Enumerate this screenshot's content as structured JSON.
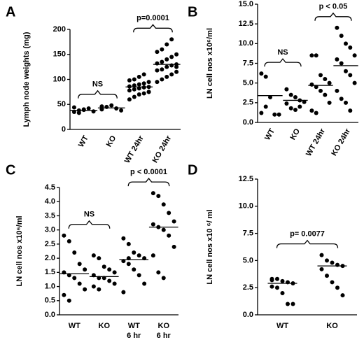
{
  "chart_data": [
    {
      "type": "strip",
      "panel": "A",
      "ylabel": "Lymph node weights (mg)",
      "categories": [
        [
          "WT"
        ],
        [
          "KO"
        ],
        [
          "WT 24hr"
        ],
        [
          "KO 24hr"
        ]
      ],
      "points": [
        [
          35,
          38,
          40,
          42,
          36,
          44,
          33,
          39
        ],
        [
          40,
          45,
          48,
          42,
          38,
          46
        ],
        [
          60,
          65,
          70,
          72,
          75,
          78,
          80,
          82,
          84,
          85,
          86,
          88,
          90,
          92,
          95,
          98,
          100,
          105,
          110,
          75
        ],
        [
          95,
          100,
          105,
          110,
          115,
          118,
          120,
          125,
          128,
          130,
          132,
          135,
          140,
          145,
          150,
          155,
          160,
          170,
          180,
          125
        ]
      ],
      "means": [
        38,
        43,
        85,
        130
      ],
      "annotations": [
        "NS",
        "p=0.0001"
      ],
      "ylim": [
        0,
        200
      ],
      "yticks": [
        0,
        50,
        100,
        150,
        200
      ]
    },
    {
      "type": "strip",
      "panel": "B",
      "ylabel": "LN cell nos x10⁶/ml",
      "categories": [
        [
          "WT"
        ],
        [
          "KO"
        ],
        [
          "WT 24hr"
        ],
        [
          "KO 24hr"
        ]
      ],
      "points": [
        [
          6.2,
          5.8,
          3.2,
          1,
          1,
          1.2,
          2.0
        ],
        [
          4.2,
          3.5,
          3.2,
          2.8,
          2.6,
          2.4,
          1.8,
          1.6,
          2.0
        ],
        [
          8.5,
          8.5,
          6,
          5.5,
          5,
          4.8,
          4.5,
          4,
          3.5,
          2.5,
          1.5,
          1.2
        ],
        [
          12,
          11,
          10,
          9.5,
          8.5,
          8,
          7.5,
          6.5,
          6,
          5,
          4,
          3,
          2.5,
          1.5
        ]
      ],
      "means": [
        3.4,
        2.8,
        4.7,
        7.2
      ],
      "annotations": [
        "NS",
        "p < 0.05"
      ],
      "ylim": [
        0,
        15
      ],
      "yticks": [
        {
          "value": 0,
          "label": "0.0"
        },
        {
          "value": 2.5,
          "label": "2.5"
        },
        {
          "value": 5,
          "label": "5.0"
        },
        {
          "value": 7.5,
          "label": "7.5"
        },
        {
          "value": 10,
          "label": "10.0"
        },
        {
          "value": 12.5,
          "label": "12.5"
        },
        {
          "value": 15,
          "label": "15.0"
        }
      ]
    },
    {
      "type": "strip",
      "panel": "C",
      "ylabel": "LN cell nos x10⁶/ml",
      "categories": [
        [
          "WT"
        ],
        [
          "KO"
        ],
        [
          "WT",
          "6 hr"
        ],
        [
          "KO",
          "6 hr"
        ]
      ],
      "points": [
        [
          2.8,
          2.6,
          2.2,
          1.8,
          1.6,
          1.5,
          1.4,
          1.3,
          1.1,
          0.9,
          0.7,
          0.5
        ],
        [
          2.1,
          2.0,
          1.7,
          1.6,
          1.5,
          1.4,
          1.3,
          1.3,
          1.2,
          1.1,
          1.0,
          0.9
        ],
        [
          2.7,
          2.5,
          2.2,
          2.1,
          2.0,
          1.9,
          1.8,
          1.6,
          1.4,
          1.1,
          0.8,
          2.0
        ],
        [
          4.3,
          4.2,
          3.9,
          3.6,
          3.3,
          3.2,
          3.1,
          3.0,
          2.8,
          2.4,
          2.1,
          1.5,
          1.3
        ]
      ],
      "means": [
        1.45,
        1.35,
        1.95,
        3.1
      ],
      "annotations": [
        "NS",
        "p < 0.0001"
      ],
      "ylim": [
        0,
        4.5
      ],
      "yticks": [
        {
          "value": 0,
          "label": "0.0"
        },
        {
          "value": 0.5,
          "label": "0.5"
        },
        {
          "value": 1,
          "label": "1.0"
        },
        {
          "value": 1.5,
          "label": "1.5"
        },
        {
          "value": 2,
          "label": "2.0"
        },
        {
          "value": 2.5,
          "label": "2.5"
        },
        {
          "value": 3,
          "label": "3.0"
        },
        {
          "value": 3.5,
          "label": "3.5"
        },
        {
          "value": 4,
          "label": "4.0"
        },
        {
          "value": 4.5,
          "label": "4.5"
        }
      ]
    },
    {
      "type": "strip",
      "panel": "D",
      "ylabel": "LN cell nos x10 ⁶/ ml",
      "categories": [
        [
          "WT"
        ],
        [
          "KO"
        ]
      ],
      "points": [
        [
          3.3,
          3.3,
          3.1,
          3.0,
          2.9,
          2.6,
          2.5,
          2.0,
          1.0,
          1.0,
          3.2
        ],
        [
          5.5,
          5,
          4.8,
          4.6,
          4.5,
          4.2,
          3.6,
          3.0,
          2.5,
          1.8
        ]
      ],
      "means": [
        2.9,
        4.5
      ],
      "annotations": [
        "p= 0.0077"
      ],
      "ylim": [
        0,
        12.5
      ],
      "yticks": [
        {
          "value": 0,
          "label": "0.0"
        },
        {
          "value": 2.5,
          "label": "2.5"
        },
        {
          "value": 5,
          "label": "5.0"
        },
        {
          "value": 7.5,
          "label": "7.5"
        },
        {
          "value": 10,
          "label": "10.0"
        },
        {
          "value": 12.5,
          "label": "12.5"
        }
      ]
    }
  ]
}
